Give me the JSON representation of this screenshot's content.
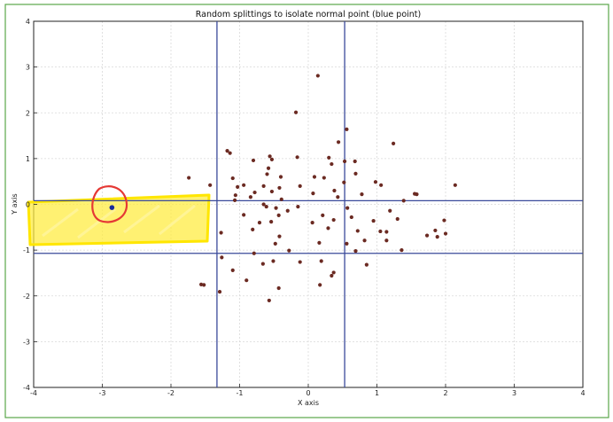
{
  "chart_data": {
    "type": "scatter",
    "title": "Random splittings to isolate normal point (blue point)",
    "xlabel": "X axis",
    "ylabel": "Y axis",
    "xlim": [
      -4,
      4
    ],
    "ylim": [
      -4,
      4
    ],
    "xticks": [
      "-4",
      "-3",
      "-2",
      "-1",
      "0",
      "1",
      "2",
      "3",
      "4"
    ],
    "yticks": [
      "-4",
      "-3",
      "-2",
      "-1",
      "0",
      "1",
      "2",
      "3",
      "4"
    ],
    "grid": true,
    "colors": {
      "points": "#6b2a22",
      "highlight_point": "#1a2a9a",
      "split_lines": "#3a4a9a",
      "highlight_box": "#ffeb3b",
      "circle": "#e53935",
      "grid": "#d9d9d9"
    },
    "vertical_splits": [
      -1.33,
      0.53
    ],
    "horizontal_splits": [
      0.08,
      -1.07
    ],
    "highlighted_point": {
      "x": -2.86,
      "y": -0.07
    },
    "series": [
      {
        "points": [
          [
            0.14,
            2.81
          ],
          [
            -0.18,
            2.01
          ],
          [
            0.56,
            1.64
          ],
          [
            1.24,
            1.33
          ],
          [
            0.44,
            1.36
          ],
          [
            -1.18,
            1.17
          ],
          [
            -1.14,
            1.12
          ],
          [
            -0.56,
            1.05
          ],
          [
            -0.53,
            0.98
          ],
          [
            -0.16,
            1.03
          ],
          [
            0.53,
            0.94
          ],
          [
            0.3,
            1.02
          ],
          [
            0.34,
            0.88
          ],
          [
            -0.58,
            0.79
          ],
          [
            0.68,
            0.94
          ],
          [
            -0.8,
            0.96
          ],
          [
            -0.6,
            0.66
          ],
          [
            -1.1,
            0.57
          ],
          [
            -0.4,
            0.6
          ],
          [
            -1.74,
            0.58
          ],
          [
            0.23,
            0.58
          ],
          [
            0.52,
            0.48
          ],
          [
            0.69,
            0.67
          ],
          [
            0.09,
            0.6
          ],
          [
            -0.94,
            0.42
          ],
          [
            -1.43,
            0.42
          ],
          [
            -1.03,
            0.38
          ],
          [
            -0.65,
            0.4
          ],
          [
            -0.42,
            0.36
          ],
          [
            -0.12,
            0.4
          ],
          [
            0.98,
            0.49
          ],
          [
            1.06,
            0.42
          ],
          [
            0.38,
            0.3
          ],
          [
            -0.78,
            0.26
          ],
          [
            -0.53,
            0.28
          ],
          [
            0.07,
            0.24
          ],
          [
            0.78,
            0.22
          ],
          [
            1.55,
            0.23
          ],
          [
            1.58,
            0.22
          ],
          [
            2.14,
            0.42
          ],
          [
            -1.06,
            0.2
          ],
          [
            -1.07,
            0.09
          ],
          [
            -0.84,
            0.16
          ],
          [
            -0.39,
            0.11
          ],
          [
            0.43,
            0.16
          ],
          [
            1.39,
            0.08
          ],
          [
            -0.61,
            -0.05
          ],
          [
            -0.47,
            -0.08
          ],
          [
            -0.65,
            0.0
          ],
          [
            0.57,
            -0.08
          ],
          [
            -0.3,
            -0.14
          ],
          [
            -0.15,
            -0.05
          ],
          [
            1.19,
            -0.14
          ],
          [
            -0.94,
            -0.23
          ],
          [
            -0.43,
            -0.24
          ],
          [
            0.21,
            -0.24
          ],
          [
            0.37,
            -0.34
          ],
          [
            -0.54,
            -0.38
          ],
          [
            0.95,
            -0.36
          ],
          [
            1.3,
            -0.32
          ],
          [
            1.98,
            -0.35
          ],
          [
            -1.27,
            -0.62
          ],
          [
            -0.81,
            -0.55
          ],
          [
            -0.71,
            -0.4
          ],
          [
            -0.42,
            -0.7
          ],
          [
            0.06,
            -0.4
          ],
          [
            0.29,
            -0.52
          ],
          [
            0.82,
            -0.79
          ],
          [
            1.05,
            -0.59
          ],
          [
            1.14,
            -0.6
          ],
          [
            1.14,
            -0.79
          ],
          [
            1.73,
            -0.68
          ],
          [
            2.0,
            -0.64
          ],
          [
            0.72,
            -0.58
          ],
          [
            0.63,
            -0.28
          ],
          [
            1.85,
            -0.57
          ],
          [
            1.88,
            -0.71
          ],
          [
            -0.48,
            -0.86
          ],
          [
            0.16,
            -0.84
          ],
          [
            1.36,
            -1.0
          ],
          [
            0.56,
            -0.86
          ],
          [
            -0.79,
            -1.07
          ],
          [
            -0.28,
            -1.01
          ],
          [
            0.69,
            -1.02
          ],
          [
            -1.26,
            -1.16
          ],
          [
            -0.51,
            -1.24
          ],
          [
            -0.12,
            -1.26
          ],
          [
            0.19,
            -1.24
          ],
          [
            0.85,
            -1.32
          ],
          [
            -1.1,
            -1.44
          ],
          [
            -0.66,
            -1.3
          ],
          [
            -0.9,
            -1.66
          ],
          [
            0.37,
            -1.49
          ],
          [
            0.34,
            -1.56
          ],
          [
            0.17,
            -1.76
          ],
          [
            -0.43,
            -1.83
          ],
          [
            -1.56,
            -1.75
          ],
          [
            -1.52,
            -1.76
          ],
          [
            -1.29,
            -1.91
          ],
          [
            -0.57,
            -2.1
          ]
        ]
      }
    ]
  }
}
